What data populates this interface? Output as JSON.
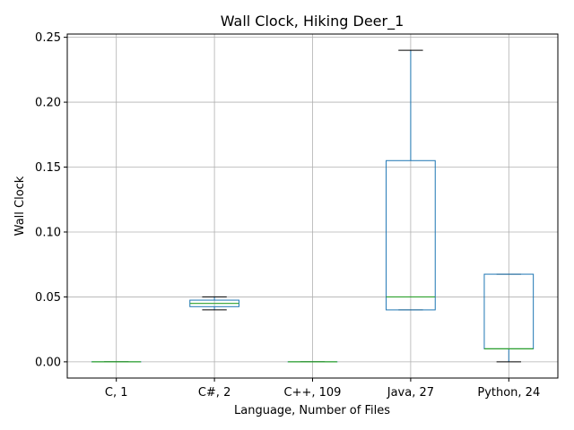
{
  "chart_data": {
    "type": "box",
    "title": "Wall Clock, Hiking Deer_1",
    "xlabel": "Language, Number of Files",
    "ylabel": "Wall Clock",
    "ylim": [
      -0.0125,
      0.2525
    ],
    "yticks": [
      0.0,
      0.05,
      0.1,
      0.15,
      0.2,
      0.25
    ],
    "ytick_labels": [
      "0.00",
      "0.05",
      "0.10",
      "0.15",
      "0.20",
      "0.25"
    ],
    "grid": true,
    "categories": [
      "C, 1",
      "C#, 2",
      "C++, 109",
      "Java, 27",
      "Python, 24"
    ],
    "boxes": [
      {
        "whislo": 0.0,
        "q1": 0.0,
        "med": 0.0,
        "q3": 0.0,
        "whishi": 0.0
      },
      {
        "whislo": 0.04,
        "q1": 0.0425,
        "med": 0.045,
        "q3": 0.0475,
        "whishi": 0.05
      },
      {
        "whislo": 0.0,
        "q1": 0.0,
        "med": 0.0,
        "q3": 0.0,
        "whishi": 0.0
      },
      {
        "whislo": 0.04,
        "q1": 0.04,
        "med": 0.05,
        "q3": 0.155,
        "whishi": 0.24
      },
      {
        "whislo": 0.0,
        "q1": 0.01,
        "med": 0.01,
        "q3": 0.0675,
        "whishi": 0.0675
      }
    ],
    "colors": {
      "box": "#1f77b4",
      "median": "#2ca02c",
      "whisker_cap": "#000000",
      "grid": "#b0b0b0",
      "axes": "#000000"
    }
  }
}
